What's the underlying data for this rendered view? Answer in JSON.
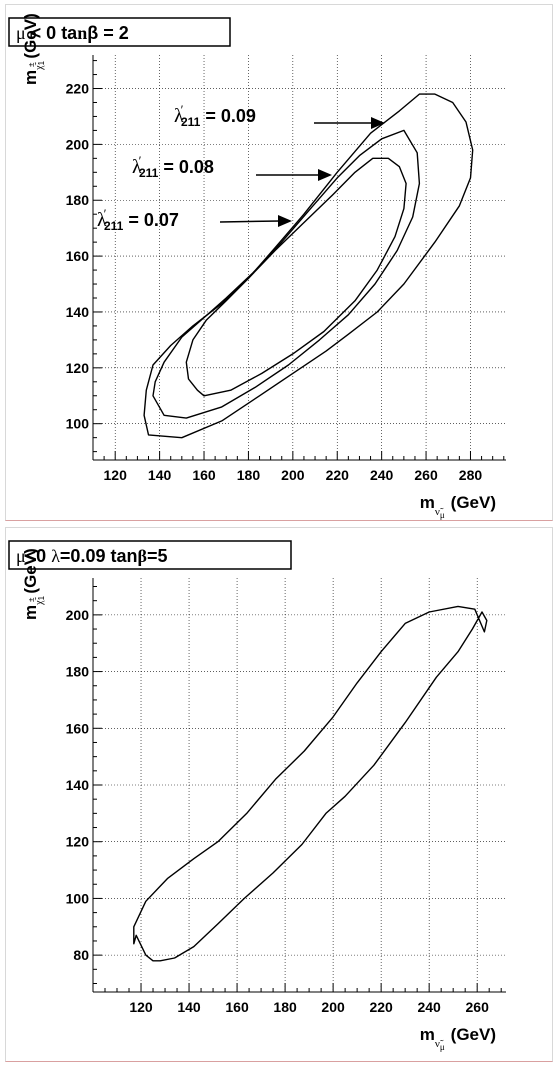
{
  "chart_data": [
    {
      "type": "line",
      "title": "μ < 0   tanβ = 2",
      "xlabel": "m_ν̃μ (GeV)",
      "ylabel": "m_χ̃1± (GeV)",
      "xlim": [
        110,
        296
      ],
      "ylim": [
        87,
        232
      ],
      "xticks": [
        "120",
        "140",
        "160",
        "180",
        "200",
        "220",
        "240",
        "260",
        "280"
      ],
      "yticks": [
        "100",
        "120",
        "140",
        "160",
        "180",
        "200",
        "220"
      ],
      "grid": true,
      "series": [
        {
          "name": "λ′211 = 0.09",
          "x": [
            135,
            150,
            168,
            185,
            200,
            215,
            225,
            238,
            250,
            264,
            275,
            280,
            281,
            278,
            272,
            264,
            257,
            248,
            235,
            220,
            205,
            192,
            180,
            168,
            155,
            145,
            137,
            134,
            133,
            135
          ],
          "y": [
            96,
            95,
            101,
            110,
            118,
            126,
            132,
            140,
            150,
            165,
            178,
            188,
            198,
            208,
            215,
            218,
            218,
            212,
            204,
            190,
            175,
            163,
            152,
            143,
            135,
            128,
            121,
            112,
            103,
            96
          ]
        },
        {
          "name": "λ′211 = 0.08",
          "x": [
            142,
            152,
            168,
            183,
            198,
            212,
            225,
            237,
            247,
            254,
            257,
            256,
            250,
            240,
            230,
            220,
            208,
            195,
            182,
            170,
            160,
            150,
            142,
            138,
            137,
            142
          ],
          "y": [
            103,
            102,
            106,
            113,
            121,
            130,
            139,
            150,
            162,
            174,
            186,
            197,
            205,
            202,
            196,
            188,
            177,
            165,
            154,
            145,
            138,
            131,
            122,
            115,
            110,
            103
          ]
        },
        {
          "name": "λ′211 = 0.07",
          "x": [
            160,
            172,
            186,
            200,
            214,
            228,
            238,
            246,
            250,
            251,
            248,
            243,
            236,
            228,
            218,
            205,
            192,
            180,
            170,
            161,
            155,
            152,
            153,
            157,
            160
          ],
          "y": [
            110,
            112,
            118,
            125,
            133,
            144,
            155,
            167,
            177,
            186,
            192,
            195,
            195,
            190,
            182,
            172,
            162,
            152,
            144,
            137,
            130,
            122,
            116,
            112,
            110
          ]
        }
      ],
      "annotations": [
        {
          "label": "λ′211 = 0.09"
        },
        {
          "label": "λ′211 = 0.08"
        },
        {
          "label": "λ′211 = 0.07"
        }
      ]
    },
    {
      "type": "line",
      "title": "μ<0 λ=0.09  tanβ=5",
      "xlabel": "m_ν̃μ (GeV)",
      "ylabel": "m_χ̃1± (GeV)",
      "xlim": [
        100,
        272
      ],
      "ylim": [
        67,
        213
      ],
      "xticks": [
        "120",
        "140",
        "160",
        "180",
        "200",
        "220",
        "240",
        "260"
      ],
      "yticks": [
        "80",
        "100",
        "120",
        "140",
        "160",
        "180",
        "200"
      ],
      "grid": true,
      "series": [
        {
          "name": "",
          "x": [
            118,
            122,
            125,
            128,
            134,
            142,
            152,
            163,
            175,
            187,
            197,
            205,
            217,
            230,
            243,
            252,
            258,
            262,
            264,
            263,
            259,
            252,
            240,
            230,
            220,
            210,
            200,
            188,
            176,
            164,
            152,
            142,
            131,
            122,
            117,
            117,
            118
          ],
          "y": [
            87,
            80,
            78,
            78,
            79,
            83,
            91,
            100,
            109,
            119,
            130,
            136,
            147,
            162,
            178,
            187,
            195,
            201,
            198,
            194,
            202,
            203,
            201,
            197,
            187,
            176,
            164,
            152,
            142,
            130,
            120,
            114,
            107,
            99,
            90,
            84,
            87
          ]
        }
      ]
    }
  ]
}
